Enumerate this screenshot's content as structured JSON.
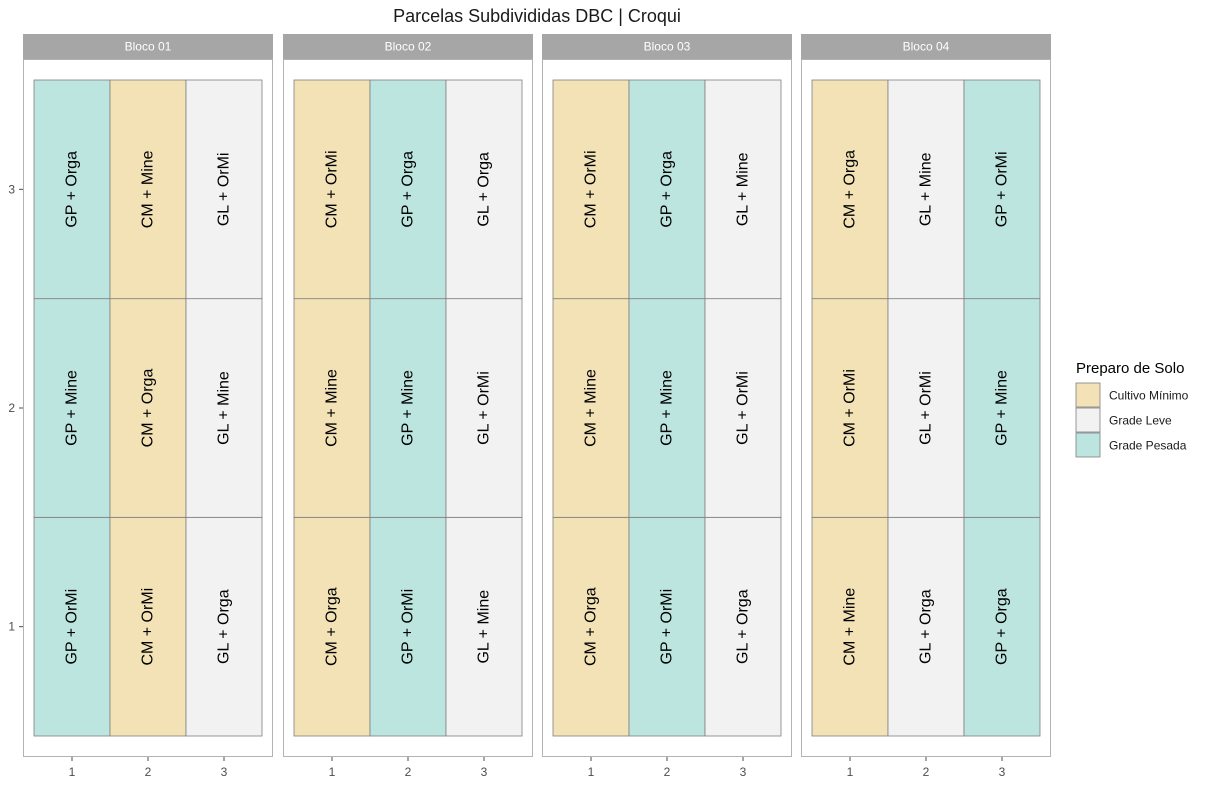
{
  "chart_data": {
    "type": "heatmap",
    "title": "Parcelas Subdivididas DBC | Croqui",
    "x_ticks": [
      "1",
      "2",
      "3"
    ],
    "y_ticks": [
      "1",
      "2",
      "3"
    ],
    "xlim": [
      0.5,
      3.5
    ],
    "ylim": [
      0.5,
      3.5
    ],
    "legend": {
      "title": "Preparo de Solo",
      "placement": "right",
      "items": [
        {
          "label": "Cultivo Mínimo",
          "color": "#f2e2b6"
        },
        {
          "label": "Grade Leve",
          "color": "#f2f2f2"
        },
        {
          "label": "Grade Pesada",
          "color": "#bde5e0"
        }
      ]
    },
    "facets": [
      {
        "name": "Bloco 01",
        "columns": [
          {
            "x": 1,
            "treatment": "Grade Pesada",
            "cells": [
              "GP + OrMi",
              "GP + Mine",
              "GP + Orga"
            ]
          },
          {
            "x": 2,
            "treatment": "Cultivo Mínimo",
            "cells": [
              "CM + OrMi",
              "CM + Orga",
              "CM + Mine"
            ]
          },
          {
            "x": 3,
            "treatment": "Grade Leve",
            "cells": [
              "GL + Orga",
              "GL + Mine",
              "GL + OrMi"
            ]
          }
        ]
      },
      {
        "name": "Bloco 02",
        "columns": [
          {
            "x": 1,
            "treatment": "Cultivo Mínimo",
            "cells": [
              "CM + Orga",
              "CM + Mine",
              "CM + OrMi"
            ]
          },
          {
            "x": 2,
            "treatment": "Grade Pesada",
            "cells": [
              "GP + OrMi",
              "GP + Mine",
              "GP + Orga"
            ]
          },
          {
            "x": 3,
            "treatment": "Grade Leve",
            "cells": [
              "GL + Mine",
              "GL + OrMi",
              "GL + Orga"
            ]
          }
        ]
      },
      {
        "name": "Bloco 03",
        "columns": [
          {
            "x": 1,
            "treatment": "Cultivo Mínimo",
            "cells": [
              "CM + Orga",
              "CM + Mine",
              "CM + OrMi"
            ]
          },
          {
            "x": 2,
            "treatment": "Grade Pesada",
            "cells": [
              "GP + OrMi",
              "GP + Mine",
              "GP + Orga"
            ]
          },
          {
            "x": 3,
            "treatment": "Grade Leve",
            "cells": [
              "GL + Orga",
              "GL + OrMi",
              "GL + Mine"
            ]
          }
        ]
      },
      {
        "name": "Bloco 04",
        "columns": [
          {
            "x": 1,
            "treatment": "Cultivo Mínimo",
            "cells": [
              "CM + Mine",
              "CM + OrMi",
              "CM + Orga"
            ]
          },
          {
            "x": 2,
            "treatment": "Grade Leve",
            "cells": [
              "GL + Orga",
              "GL + OrMi",
              "GL + Mine"
            ]
          },
          {
            "x": 3,
            "treatment": "Grade Pesada",
            "cells": [
              "GP + Orga",
              "GP + Mine",
              "GP + OrMi"
            ]
          }
        ]
      }
    ]
  }
}
